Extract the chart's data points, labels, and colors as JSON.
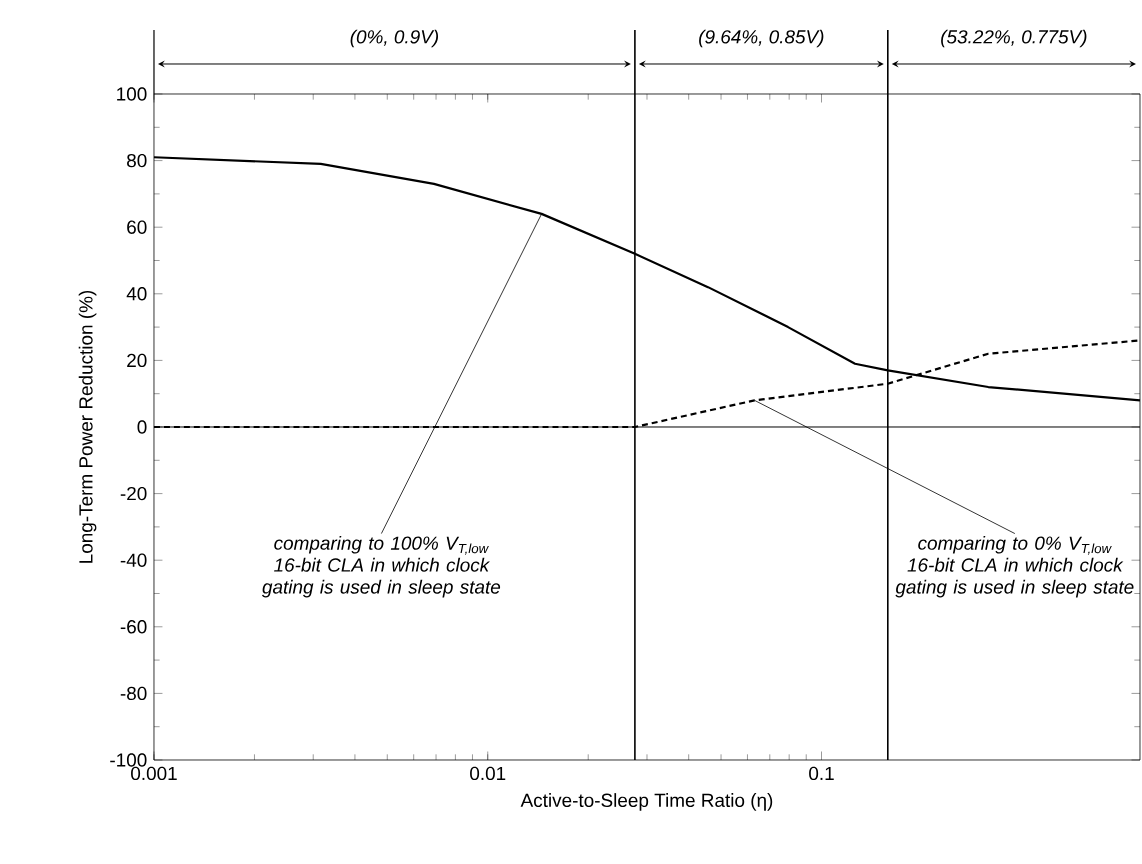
{
  "chart_data": {
    "type": "line",
    "xlabel": "Active-to-Sleep Time Ratio (η)",
    "ylabel": "Long-Term Power Reduction (%)",
    "log": "x",
    "xlim": [
      0.001,
      0.9
    ],
    "xticks": [
      0.001,
      0.01,
      0.1
    ],
    "ylim": [
      -100,
      100
    ],
    "yticks": [
      -100,
      -80,
      -60,
      -40,
      -20,
      0,
      20,
      40,
      60,
      80,
      100
    ],
    "grid": false,
    "marker": "none",
    "series": [
      {
        "color": "#000000",
        "line_style": "solid",
        "x": [
          0.001,
          0.00316,
          0.0069,
          0.0145,
          0.0276,
          0.0457,
          0.0794,
          0.126,
          0.158,
          0.316,
          0.9
        ],
        "values": [
          81,
          79,
          73,
          64,
          52,
          42,
          30,
          19,
          17,
          12,
          8
        ]
      },
      {
        "color": "#000000",
        "line_style": "dashed",
        "x": [
          0.001,
          0.0276,
          0.063,
          0.158,
          0.316,
          0.9
        ],
        "values": [
          0,
          0,
          8,
          13,
          22,
          26
        ]
      }
    ],
    "ref_lines": [
      {
        "axis": "y",
        "value": 0,
        "color": "#000000"
      },
      {
        "axis": "x",
        "value": 0.0276,
        "color": "#000000"
      },
      {
        "axis": "x",
        "value": 0.158,
        "color": "#000000"
      }
    ],
    "annotations": [
      "(0%, 0.9V)",
      "(9.64%, 0.85V)",
      "(53.22%, 0.775V)",
      {
        "text": "comparing to 100% V$_{T,low}$ 16-bit CLA in which clock gating is used in sleep state",
        "x": 0.0145,
        "y": 64
      },
      {
        "text": "comparing to 0% V$_{T,low}$ 16-bit CLA in which clock gating is used in sleep state",
        "x": 0.063,
        "y": 8
      }
    ]
  }
}
